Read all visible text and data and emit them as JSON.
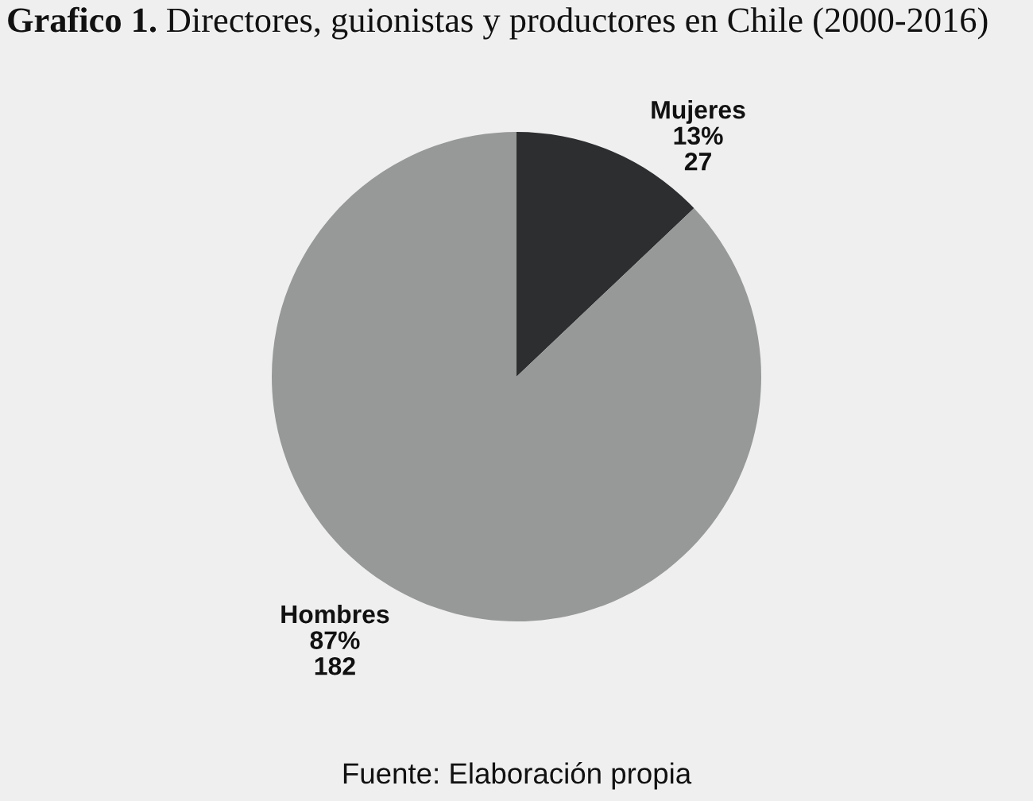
{
  "chart_data": {
    "type": "pie",
    "title": "Grafico 1.",
    "subtitle": "Directores, guionistas y productores en Chile (2000-2016)",
    "categories": [
      "Mujeres",
      "Hombres"
    ],
    "values": [
      27,
      182
    ],
    "colors": [
      "#2c2e30",
      "#979998"
    ],
    "value_labels": [
      "13%\n27",
      "87%\n182"
    ],
    "annotations": [
      "Fuente: Elaboración propia"
    ]
  }
}
